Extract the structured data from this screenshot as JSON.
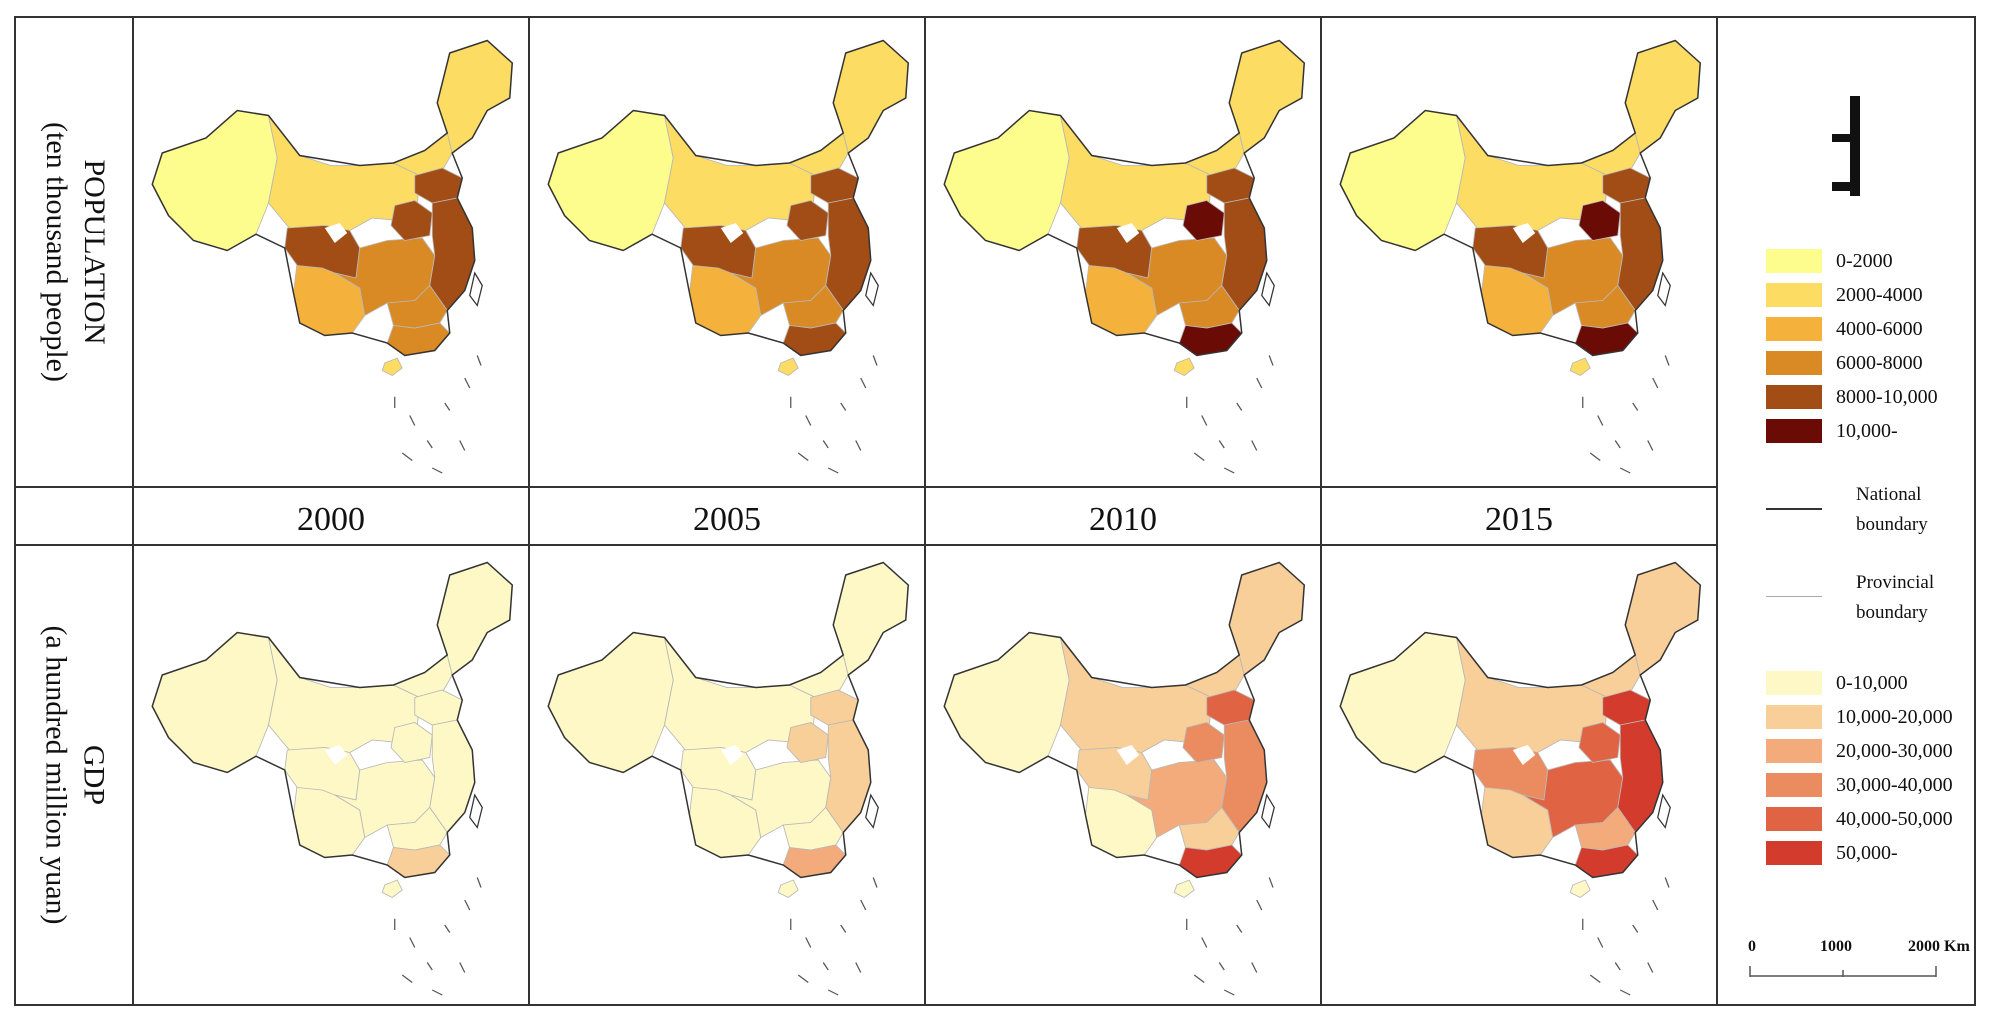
{
  "rows": {
    "top": {
      "label": "POPULATION",
      "sublabel": "(ten thousand people)"
    },
    "bottom": {
      "label": "GDP",
      "sublabel": "(a hundred million yuan)"
    }
  },
  "years": [
    "2000",
    "2005",
    "2010",
    "2015"
  ],
  "north_arrow_icon": "north-arrow-icon",
  "legend": {
    "population": [
      {
        "label": "0-2000",
        "color": "#fdfd8e"
      },
      {
        "label": "2000-4000",
        "color": "#fddc63"
      },
      {
        "label": "4000-6000",
        "color": "#f4b23c"
      },
      {
        "label": "6000-8000",
        "color": "#d98a25"
      },
      {
        "label": "8000-10,000",
        "color": "#a24c16"
      },
      {
        "label": "10,000-",
        "color": "#6b0b06"
      }
    ],
    "boundaries": [
      {
        "label": "National",
        "label2": "boundary",
        "color": "#333333"
      },
      {
        "label": "Provincial",
        "label2": "boundary",
        "color": "#aaaaaa"
      }
    ],
    "gdp": [
      {
        "label": "0-10,000",
        "color": "#fdf8c6"
      },
      {
        "label": "10,000-20,000",
        "color": "#f8cf98"
      },
      {
        "label": "20,000-30,000",
        "color": "#f3ab7c"
      },
      {
        "label": "30,000-40,000",
        "color": "#ea8c60"
      },
      {
        "label": "40,000-50,000",
        "color": "#e06443"
      },
      {
        "label": "50,000-",
        "color": "#d33c2c"
      }
    ],
    "scale": {
      "ticks": [
        "0",
        "1000",
        "2000 Km"
      ]
    }
  },
  "maps": {
    "population": [
      {
        "west": 0,
        "northwest": 1,
        "southwest": 2,
        "north": 1,
        "northeast": 1,
        "central": 3,
        "east": 4,
        "south": 3,
        "sichuan": 4,
        "henan": 4,
        "shandong": 4,
        "guangdong": 3,
        "hainan": 1
      },
      {
        "west": 0,
        "northwest": 1,
        "southwest": 2,
        "north": 1,
        "northeast": 1,
        "central": 3,
        "east": 4,
        "south": 3,
        "sichuan": 4,
        "henan": 4,
        "shandong": 4,
        "guangdong": 4,
        "hainan": 1
      },
      {
        "west": 0,
        "northwest": 1,
        "southwest": 2,
        "north": 1,
        "northeast": 1,
        "central": 3,
        "east": 4,
        "south": 3,
        "sichuan": 4,
        "henan": 5,
        "shandong": 4,
        "guangdong": 5,
        "hainan": 1
      },
      {
        "west": 0,
        "northwest": 1,
        "southwest": 2,
        "north": 1,
        "northeast": 1,
        "central": 3,
        "east": 4,
        "south": 3,
        "sichuan": 4,
        "henan": 5,
        "shandong": 4,
        "guangdong": 5,
        "hainan": 1
      }
    ],
    "gdp": [
      {
        "west": 0,
        "northwest": 0,
        "southwest": 0,
        "north": 0,
        "northeast": 0,
        "central": 0,
        "east": 0,
        "south": 0,
        "sichuan": 0,
        "henan": 0,
        "shandong": 0,
        "guangdong": 1,
        "hainan": 0
      },
      {
        "west": 0,
        "northwest": 0,
        "southwest": 0,
        "north": 0,
        "northeast": 0,
        "central": 0,
        "east": 1,
        "south": 0,
        "sichuan": 0,
        "henan": 1,
        "shandong": 1,
        "guangdong": 2,
        "hainan": 0
      },
      {
        "west": 0,
        "northwest": 1,
        "southwest": 0,
        "north": 1,
        "northeast": 1,
        "central": 2,
        "east": 3,
        "south": 1,
        "sichuan": 1,
        "henan": 3,
        "shandong": 4,
        "guangdong": 5,
        "hainan": 0
      },
      {
        "west": 0,
        "northwest": 1,
        "southwest": 1,
        "north": 1,
        "northeast": 1,
        "central": 4,
        "east": 5,
        "south": 2,
        "sichuan": 3,
        "henan": 4,
        "shandong": 5,
        "guangdong": 5,
        "hainan": 0
      }
    ]
  }
}
